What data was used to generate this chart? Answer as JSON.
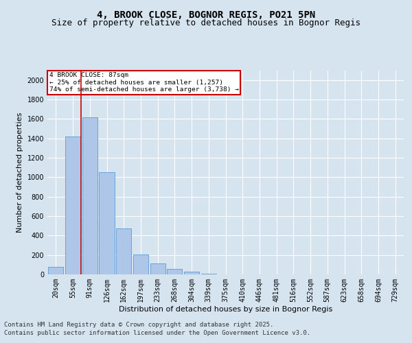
{
  "title1": "4, BROOK CLOSE, BOGNOR REGIS, PO21 5PN",
  "title2": "Size of property relative to detached houses in Bognor Regis",
  "xlabel": "Distribution of detached houses by size in Bognor Regis",
  "ylabel": "Number of detached properties",
  "footer1": "Contains HM Land Registry data © Crown copyright and database right 2025.",
  "footer2": "Contains public sector information licensed under the Open Government Licence v3.0.",
  "categories": [
    "20sqm",
    "55sqm",
    "91sqm",
    "126sqm",
    "162sqm",
    "197sqm",
    "233sqm",
    "268sqm",
    "304sqm",
    "339sqm",
    "375sqm",
    "410sqm",
    "446sqm",
    "481sqm",
    "516sqm",
    "552sqm",
    "587sqm",
    "623sqm",
    "658sqm",
    "694sqm",
    "729sqm"
  ],
  "values": [
    75,
    1420,
    1620,
    1050,
    470,
    205,
    110,
    55,
    30,
    10,
    3,
    0,
    0,
    0,
    0,
    0,
    0,
    0,
    0,
    0,
    0
  ],
  "bar_color": "#aec6e8",
  "bar_edge_color": "#5b9bd5",
  "vline_color": "#cc0000",
  "annotation_text": "4 BROOK CLOSE: 87sqm\n← 25% of detached houses are smaller (1,257)\n74% of semi-detached houses are larger (3,738) →",
  "annotation_box_color": "#cc0000",
  "ylim": [
    0,
    2100
  ],
  "yticks": [
    0,
    200,
    400,
    600,
    800,
    1000,
    1200,
    1400,
    1600,
    1800,
    2000
  ],
  "bg_color": "#d6e4f0",
  "plot_bg_color": "#d6e4f0",
  "grid_color": "#ffffff",
  "title_fontsize": 10,
  "subtitle_fontsize": 9,
  "label_fontsize": 8,
  "tick_fontsize": 7,
  "footer_fontsize": 6.5
}
